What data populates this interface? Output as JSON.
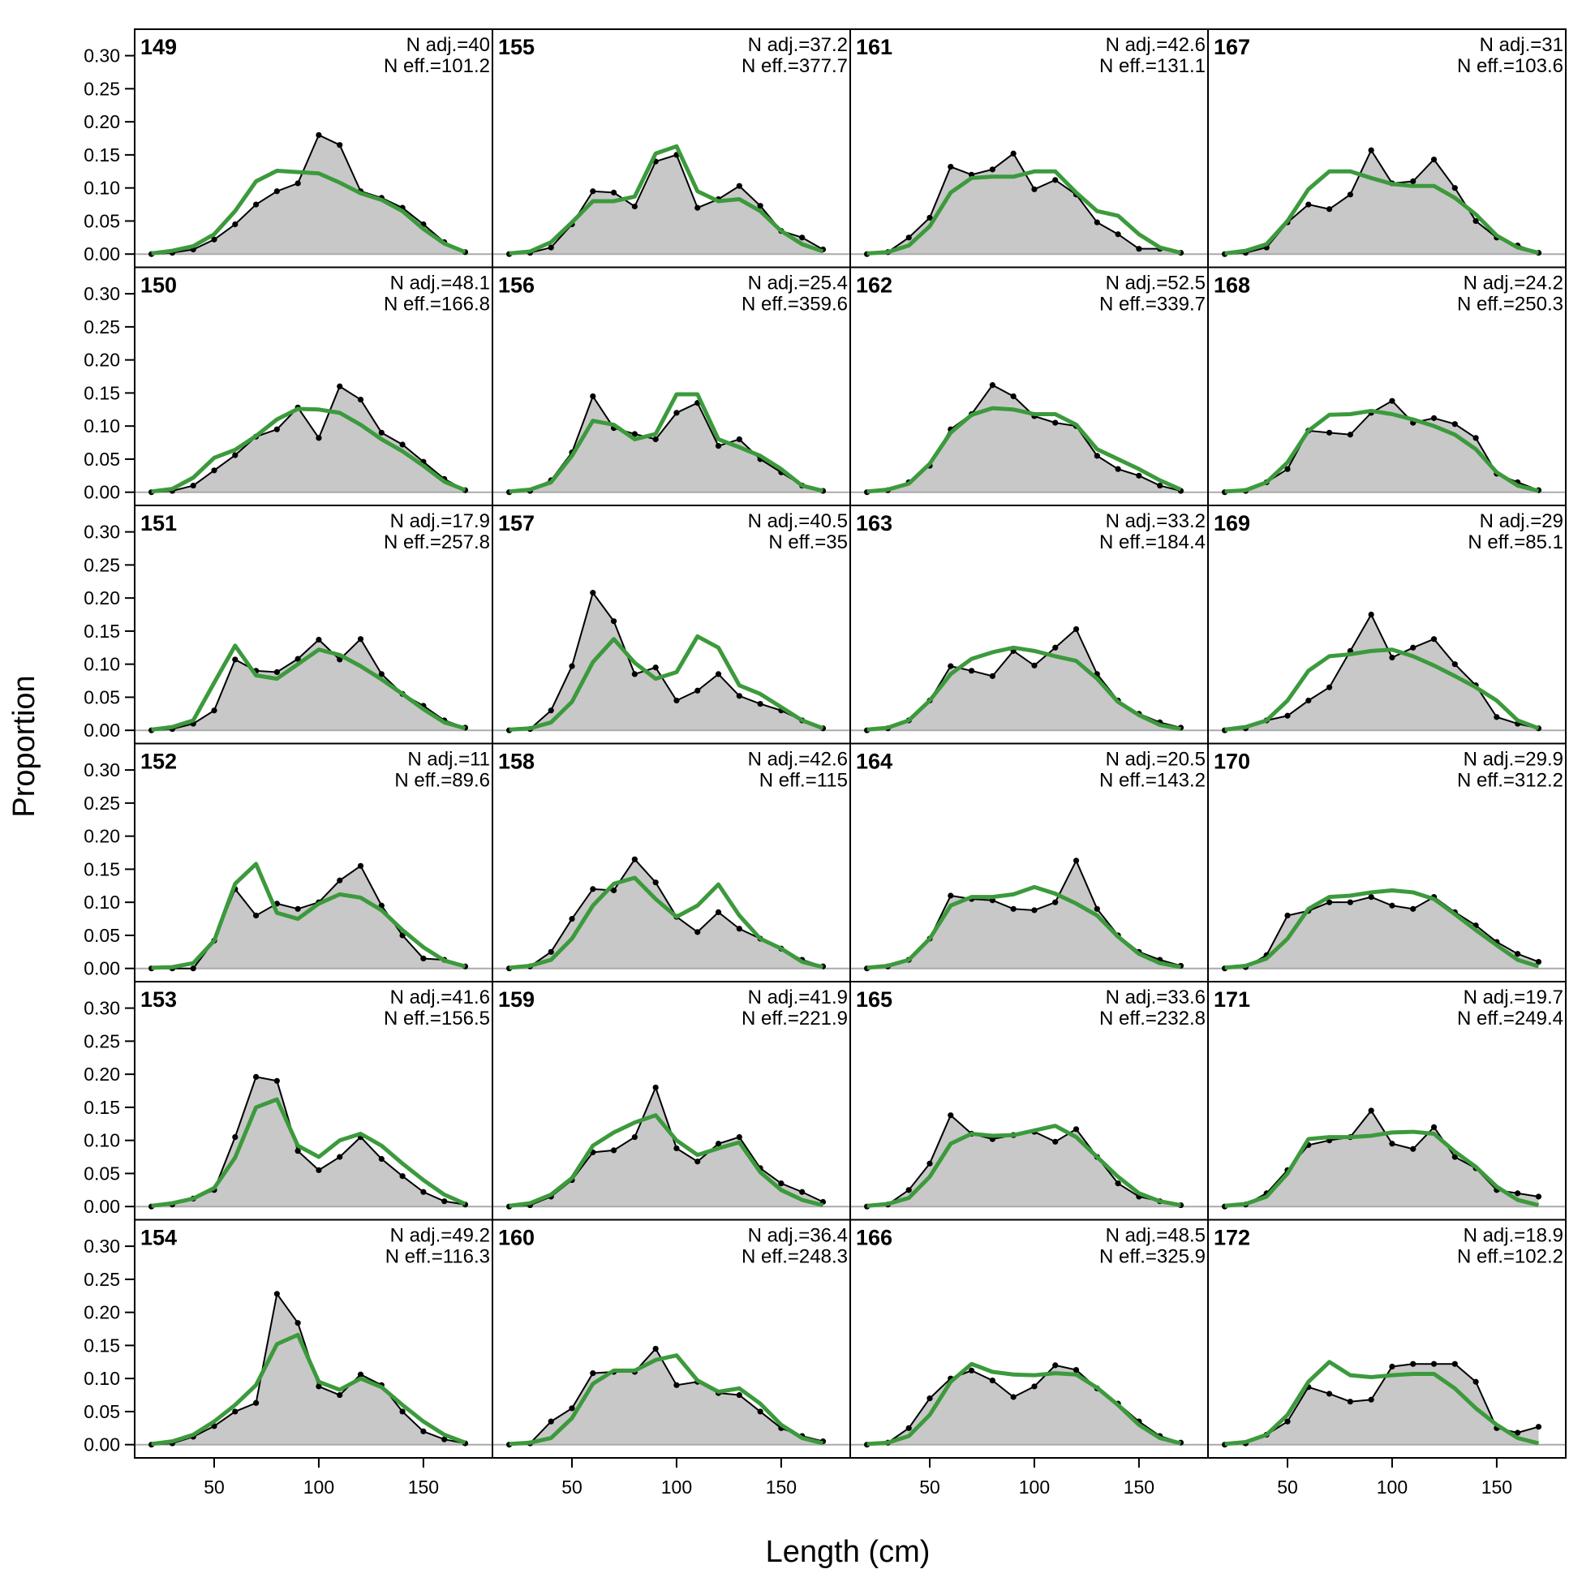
{
  "chart_data": {
    "type": "line",
    "xlabel": "Length (cm)",
    "ylabel": "Proportion",
    "xlim": [
      12,
      183
    ],
    "ylim": [
      -0.02,
      0.34
    ],
    "x_ticks": [
      50,
      100,
      150
    ],
    "y_ticks": [
      0.0,
      0.05,
      0.1,
      0.15,
      0.2,
      0.25,
      0.3
    ],
    "y_tick_labels": [
      "0.00",
      "0.05",
      "0.10",
      "0.15",
      "0.20",
      "0.25",
      "0.30"
    ],
    "x_tick_labels": [
      "50",
      "100",
      "150"
    ],
    "x": [
      20,
      30,
      40,
      50,
      60,
      70,
      80,
      90,
      100,
      110,
      120,
      130,
      140,
      150,
      160,
      170
    ],
    "colors": {
      "observed_fill": "#c8c8c8",
      "observed_line": "#000000",
      "expected": "#3c9a3c",
      "zero_line": "#aaaaaa"
    },
    "grid": false,
    "layout": {
      "rows": 6,
      "cols": 4,
      "order": "column-major"
    },
    "panels": [
      {
        "id": "149",
        "n_adj": "N adj.=40",
        "n_eff": "N eff.=101.2",
        "observed": [
          0.0,
          0.002,
          0.007,
          0.022,
          0.045,
          0.075,
          0.095,
          0.107,
          0.18,
          0.165,
          0.095,
          0.085,
          0.07,
          0.045,
          0.018,
          0.003
        ],
        "expected": [
          0.001,
          0.005,
          0.012,
          0.03,
          0.065,
          0.11,
          0.126,
          0.124,
          0.122,
          0.108,
          0.092,
          0.082,
          0.065,
          0.038,
          0.016,
          0.003
        ]
      },
      {
        "id": "150",
        "n_adj": "N adj.=48.1",
        "n_eff": "N eff.=166.8",
        "observed": [
          0.0,
          0.002,
          0.01,
          0.033,
          0.056,
          0.084,
          0.095,
          0.128,
          0.082,
          0.16,
          0.14,
          0.09,
          0.072,
          0.046,
          0.02,
          0.003
        ],
        "expected": [
          0.001,
          0.005,
          0.022,
          0.052,
          0.064,
          0.085,
          0.11,
          0.126,
          0.125,
          0.12,
          0.102,
          0.08,
          0.062,
          0.04,
          0.016,
          0.003
        ]
      },
      {
        "id": "151",
        "n_adj": "N adj.=17.9",
        "n_eff": "N eff.=257.8",
        "observed": [
          0.0,
          0.002,
          0.01,
          0.03,
          0.107,
          0.09,
          0.088,
          0.108,
          0.137,
          0.107,
          0.138,
          0.085,
          0.055,
          0.037,
          0.015,
          0.004
        ],
        "expected": [
          0.001,
          0.005,
          0.015,
          0.072,
          0.128,
          0.083,
          0.078,
          0.1,
          0.122,
          0.114,
          0.097,
          0.077,
          0.055,
          0.032,
          0.012,
          0.003
        ]
      },
      {
        "id": "152",
        "n_adj": "N adj.=11",
        "n_eff": "N eff.=89.6",
        "observed": [
          0.0,
          0.0,
          0.0,
          0.042,
          0.12,
          0.08,
          0.098,
          0.09,
          0.1,
          0.133,
          0.155,
          0.095,
          0.05,
          0.015,
          0.013,
          0.003
        ],
        "expected": [
          0.001,
          0.002,
          0.008,
          0.042,
          0.128,
          0.158,
          0.084,
          0.075,
          0.098,
          0.112,
          0.107,
          0.088,
          0.058,
          0.032,
          0.012,
          0.003
        ]
      },
      {
        "id": "153",
        "n_adj": "N adj.=41.6",
        "n_eff": "N eff.=156.5",
        "observed": [
          0.0,
          0.003,
          0.012,
          0.025,
          0.105,
          0.196,
          0.19,
          0.084,
          0.055,
          0.075,
          0.105,
          0.072,
          0.046,
          0.022,
          0.008,
          0.003
        ],
        "expected": [
          0.001,
          0.005,
          0.012,
          0.028,
          0.074,
          0.15,
          0.162,
          0.092,
          0.075,
          0.1,
          0.11,
          0.092,
          0.065,
          0.04,
          0.018,
          0.004
        ]
      },
      {
        "id": "154",
        "n_adj": "N adj.=49.2",
        "n_eff": "N eff.=116.3",
        "observed": [
          0.0,
          0.002,
          0.012,
          0.028,
          0.05,
          0.063,
          0.228,
          0.184,
          0.088,
          0.075,
          0.106,
          0.09,
          0.05,
          0.02,
          0.008,
          0.002
        ],
        "expected": [
          0.001,
          0.005,
          0.015,
          0.035,
          0.06,
          0.09,
          0.152,
          0.166,
          0.095,
          0.083,
          0.1,
          0.087,
          0.06,
          0.035,
          0.015,
          0.003
        ]
      },
      {
        "id": "155",
        "n_adj": "N adj.=37.2",
        "n_eff": "N eff.=377.7",
        "observed": [
          0.0,
          0.002,
          0.01,
          0.045,
          0.095,
          0.093,
          0.072,
          0.14,
          0.15,
          0.07,
          0.083,
          0.103,
          0.073,
          0.035,
          0.025,
          0.007
        ],
        "expected": [
          0.001,
          0.004,
          0.018,
          0.048,
          0.08,
          0.08,
          0.087,
          0.152,
          0.163,
          0.095,
          0.08,
          0.083,
          0.065,
          0.035,
          0.015,
          0.004
        ]
      },
      {
        "id": "156",
        "n_adj": "N adj.=25.4",
        "n_eff": "N eff.=359.6",
        "observed": [
          0.0,
          0.002,
          0.018,
          0.06,
          0.145,
          0.097,
          0.088,
          0.08,
          0.12,
          0.135,
          0.07,
          0.08,
          0.05,
          0.03,
          0.01,
          0.002
        ],
        "expected": [
          0.001,
          0.004,
          0.015,
          0.055,
          0.108,
          0.102,
          0.08,
          0.088,
          0.148,
          0.148,
          0.08,
          0.068,
          0.055,
          0.035,
          0.01,
          0.002
        ]
      },
      {
        "id": "157",
        "n_adj": "N adj.=40.5",
        "n_eff": "N eff.=35",
        "observed": [
          0.0,
          0.002,
          0.03,
          0.097,
          0.208,
          0.165,
          0.085,
          0.095,
          0.045,
          0.06,
          0.085,
          0.052,
          0.04,
          0.03,
          0.015,
          0.003
        ],
        "expected": [
          0.001,
          0.003,
          0.012,
          0.043,
          0.103,
          0.138,
          0.102,
          0.078,
          0.088,
          0.142,
          0.125,
          0.068,
          0.055,
          0.035,
          0.015,
          0.003
        ]
      },
      {
        "id": "158",
        "n_adj": "N adj.=42.6",
        "n_eff": "N eff.=115",
        "observed": [
          0.0,
          0.003,
          0.025,
          0.075,
          0.12,
          0.118,
          0.165,
          0.13,
          0.078,
          0.055,
          0.085,
          0.06,
          0.045,
          0.03,
          0.013,
          0.003
        ],
        "expected": [
          0.001,
          0.004,
          0.013,
          0.045,
          0.095,
          0.128,
          0.137,
          0.105,
          0.078,
          0.095,
          0.127,
          0.08,
          0.045,
          0.03,
          0.01,
          0.002
        ]
      },
      {
        "id": "159",
        "n_adj": "N adj.=41.9",
        "n_eff": "N eff.=221.9",
        "observed": [
          0.0,
          0.002,
          0.015,
          0.04,
          0.082,
          0.085,
          0.105,
          0.18,
          0.088,
          0.068,
          0.095,
          0.105,
          0.058,
          0.035,
          0.022,
          0.007
        ],
        "expected": [
          0.001,
          0.005,
          0.018,
          0.043,
          0.092,
          0.112,
          0.127,
          0.138,
          0.1,
          0.078,
          0.088,
          0.097,
          0.052,
          0.025,
          0.01,
          0.002
        ]
      },
      {
        "id": "160",
        "n_adj": "N adj.=36.4",
        "n_eff": "N eff.=248.3",
        "observed": [
          0.0,
          0.002,
          0.035,
          0.055,
          0.108,
          0.11,
          0.11,
          0.145,
          0.09,
          0.095,
          0.078,
          0.075,
          0.05,
          0.025,
          0.013,
          0.005
        ],
        "expected": [
          0.001,
          0.003,
          0.01,
          0.04,
          0.092,
          0.112,
          0.112,
          0.128,
          0.135,
          0.097,
          0.08,
          0.085,
          0.062,
          0.03,
          0.01,
          0.002
        ]
      },
      {
        "id": "161",
        "n_adj": "N adj.=42.6",
        "n_eff": "N eff.=131.1",
        "observed": [
          0.0,
          0.003,
          0.025,
          0.055,
          0.132,
          0.12,
          0.128,
          0.152,
          0.098,
          0.112,
          0.09,
          0.048,
          0.03,
          0.008,
          0.008,
          0.002
        ],
        "expected": [
          0.001,
          0.003,
          0.013,
          0.042,
          0.093,
          0.115,
          0.117,
          0.117,
          0.125,
          0.125,
          0.093,
          0.065,
          0.058,
          0.03,
          0.01,
          0.002
        ]
      },
      {
        "id": "162",
        "n_adj": "N adj.=52.5",
        "n_eff": "N eff.=339.7",
        "observed": [
          0.0,
          0.003,
          0.015,
          0.04,
          0.095,
          0.118,
          0.162,
          0.145,
          0.115,
          0.105,
          0.1,
          0.055,
          0.035,
          0.025,
          0.01,
          0.002
        ],
        "expected": [
          0.001,
          0.004,
          0.013,
          0.043,
          0.09,
          0.117,
          0.127,
          0.125,
          0.118,
          0.118,
          0.102,
          0.065,
          0.05,
          0.035,
          0.018,
          0.004
        ]
      },
      {
        "id": "163",
        "n_adj": "N adj.=33.2",
        "n_eff": "N eff.=184.4",
        "observed": [
          0.0,
          0.003,
          0.015,
          0.045,
          0.097,
          0.09,
          0.082,
          0.12,
          0.098,
          0.125,
          0.153,
          0.085,
          0.045,
          0.025,
          0.012,
          0.004
        ],
        "expected": [
          0.001,
          0.004,
          0.015,
          0.045,
          0.085,
          0.108,
          0.118,
          0.125,
          0.12,
          0.112,
          0.105,
          0.078,
          0.043,
          0.023,
          0.008,
          0.002
        ]
      },
      {
        "id": "164",
        "n_adj": "N adj.=20.5",
        "n_eff": "N eff.=143.2",
        "observed": [
          0.0,
          0.003,
          0.013,
          0.045,
          0.11,
          0.105,
          0.103,
          0.09,
          0.088,
          0.1,
          0.163,
          0.09,
          0.05,
          0.025,
          0.013,
          0.004
        ],
        "expected": [
          0.001,
          0.004,
          0.013,
          0.045,
          0.095,
          0.108,
          0.108,
          0.112,
          0.123,
          0.113,
          0.098,
          0.08,
          0.048,
          0.022,
          0.008,
          0.002
        ]
      },
      {
        "id": "165",
        "n_adj": "N adj.=33.6",
        "n_eff": "N eff.=232.8",
        "observed": [
          0.0,
          0.003,
          0.025,
          0.065,
          0.138,
          0.11,
          0.102,
          0.108,
          0.113,
          0.098,
          0.117,
          0.075,
          0.035,
          0.015,
          0.008,
          0.002
        ],
        "expected": [
          0.001,
          0.004,
          0.013,
          0.045,
          0.095,
          0.11,
          0.107,
          0.108,
          0.115,
          0.122,
          0.105,
          0.075,
          0.045,
          0.02,
          0.008,
          0.002
        ]
      },
      {
        "id": "166",
        "n_adj": "N adj.=48.5",
        "n_eff": "N eff.=325.9",
        "observed": [
          0.0,
          0.003,
          0.025,
          0.07,
          0.1,
          0.112,
          0.097,
          0.072,
          0.088,
          0.12,
          0.113,
          0.085,
          0.062,
          0.035,
          0.013,
          0.003
        ],
        "expected": [
          0.001,
          0.003,
          0.013,
          0.045,
          0.095,
          0.122,
          0.11,
          0.106,
          0.105,
          0.108,
          0.106,
          0.086,
          0.06,
          0.03,
          0.01,
          0.002
        ]
      },
      {
        "id": "167",
        "n_adj": "N adj.=31",
        "n_eff": "N eff.=103.6",
        "observed": [
          0.0,
          0.002,
          0.01,
          0.048,
          0.075,
          0.068,
          0.09,
          0.157,
          0.107,
          0.11,
          0.143,
          0.1,
          0.05,
          0.025,
          0.013,
          0.002
        ],
        "expected": [
          0.001,
          0.005,
          0.015,
          0.05,
          0.098,
          0.125,
          0.125,
          0.115,
          0.106,
          0.103,
          0.103,
          0.085,
          0.06,
          0.028,
          0.01,
          0.002
        ]
      },
      {
        "id": "168",
        "n_adj": "N adj.=24.2",
        "n_eff": "N eff.=250.3",
        "observed": [
          0.0,
          0.002,
          0.015,
          0.035,
          0.093,
          0.09,
          0.087,
          0.12,
          0.138,
          0.105,
          0.112,
          0.103,
          0.082,
          0.028,
          0.015,
          0.003
        ],
        "expected": [
          0.001,
          0.003,
          0.015,
          0.045,
          0.093,
          0.117,
          0.118,
          0.123,
          0.118,
          0.11,
          0.1,
          0.087,
          0.065,
          0.03,
          0.01,
          0.002
        ]
      },
      {
        "id": "169",
        "n_adj": "N adj.=29",
        "n_eff": "N eff.=85.1",
        "observed": [
          0.0,
          0.003,
          0.015,
          0.022,
          0.045,
          0.065,
          0.12,
          0.175,
          0.11,
          0.125,
          0.138,
          0.1,
          0.068,
          0.02,
          0.01,
          0.003
        ],
        "expected": [
          0.001,
          0.005,
          0.015,
          0.045,
          0.09,
          0.112,
          0.115,
          0.12,
          0.122,
          0.112,
          0.098,
          0.082,
          0.065,
          0.045,
          0.015,
          0.003
        ]
      },
      {
        "id": "170",
        "n_adj": "N adj.=29.9",
        "n_eff": "N eff.=312.2",
        "observed": [
          0.0,
          0.002,
          0.02,
          0.08,
          0.087,
          0.1,
          0.1,
          0.108,
          0.095,
          0.09,
          0.108,
          0.085,
          0.065,
          0.04,
          0.022,
          0.01
        ],
        "expected": [
          0.001,
          0.004,
          0.015,
          0.045,
          0.09,
          0.108,
          0.11,
          0.115,
          0.118,
          0.115,
          0.105,
          0.082,
          0.058,
          0.035,
          0.013,
          0.003
        ]
      },
      {
        "id": "171",
        "n_adj": "N adj.=19.7",
        "n_eff": "N eff.=249.4",
        "observed": [
          0.0,
          0.003,
          0.02,
          0.055,
          0.093,
          0.1,
          0.105,
          0.145,
          0.095,
          0.087,
          0.12,
          0.075,
          0.058,
          0.025,
          0.02,
          0.015
        ],
        "expected": [
          0.001,
          0.004,
          0.015,
          0.05,
          0.102,
          0.105,
          0.105,
          0.107,
          0.112,
          0.113,
          0.11,
          0.083,
          0.06,
          0.03,
          0.01,
          0.002
        ]
      },
      {
        "id": "172",
        "n_adj": "N adj.=18.9",
        "n_eff": "N eff.=102.2",
        "observed": [
          0.0,
          0.002,
          0.015,
          0.035,
          0.087,
          0.077,
          0.065,
          0.068,
          0.118,
          0.122,
          0.122,
          0.122,
          0.095,
          0.025,
          0.018,
          0.027
        ],
        "expected": [
          0.001,
          0.004,
          0.015,
          0.045,
          0.095,
          0.125,
          0.105,
          0.102,
          0.105,
          0.107,
          0.107,
          0.085,
          0.055,
          0.03,
          0.01,
          0.002
        ]
      }
    ]
  }
}
